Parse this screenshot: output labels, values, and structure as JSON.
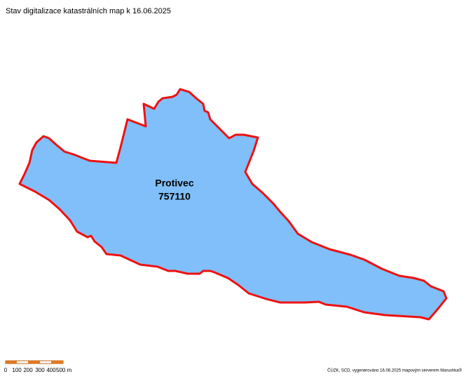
{
  "header": {
    "title": "Stav digitalizace katastrálních map k 16.06.2025"
  },
  "region": {
    "name": "Protivec",
    "code": "757110"
  },
  "scale_bar": {
    "labels": [
      "0",
      "100",
      "200",
      "300",
      "400",
      "500 m"
    ]
  },
  "footer": {
    "attribution": "ČÚZK, SCD, vygenerováno 16.06.2025 mapovým serverem Marushka®"
  }
}
